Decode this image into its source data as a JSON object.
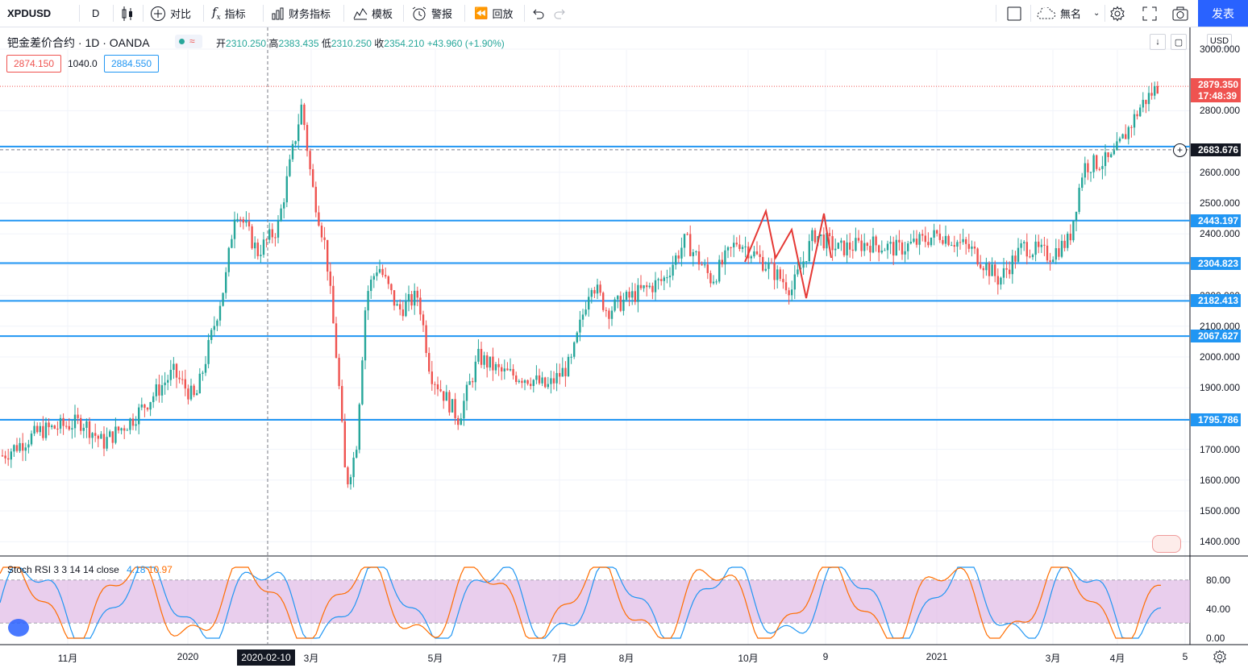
{
  "toolbar": {
    "symbol": "XPDUSD",
    "interval": "D",
    "compare": "对比",
    "indicators": "指标",
    "financials": "财务指标",
    "templates": "模板",
    "alert": "警报",
    "replay": "回放",
    "layout_name": "無名",
    "publish": "发表"
  },
  "legend": {
    "title": "钯金差价合约 · 1D · OANDA",
    "open_label": "开",
    "open": "2310.250",
    "high_label": "高",
    "high": "2383.435",
    "low_label": "低",
    "low": "2310.250",
    "close_label": "收",
    "close": "2354.210",
    "change": "+43.960",
    "change_pct": "(+1.90%)",
    "sell": "2874.150",
    "spread": "1040.0",
    "buy": "2884.550"
  },
  "price_axis": {
    "currency": "USD",
    "ticks": [
      "3000.000",
      "2800.000",
      "2600.000",
      "2500.000",
      "2400.000",
      "2300.000",
      "2200.000",
      "2100.000",
      "2000.000",
      "1900.000",
      "1800.000",
      "1700.000",
      "1600.000",
      "1500.000",
      "1400.000"
    ],
    "last_price": "2879.350",
    "countdown": "17:48:39",
    "crosshair_price": "2683.676",
    "level_labels": [
      "2443.197",
      "2304.823",
      "2182.413",
      "2067.627",
      "1795.786"
    ]
  },
  "time_axis": {
    "labels": [
      "11月",
      "2020",
      "3月",
      "5月",
      "7月",
      "8月",
      "10月",
      "9",
      "2021",
      "3月",
      "4月",
      "5"
    ],
    "crosshair_date": "2020-02-10"
  },
  "indicator": {
    "name": "Stoch RSI 3 3 14 14 close",
    "k": "4.18",
    "d": "10.97",
    "ticks": [
      "80.00",
      "40.00",
      "0.00"
    ]
  },
  "colors": {
    "up": "#26a69a",
    "down": "#ef5350",
    "hline": "#2196f3",
    "band": "#e1bee7",
    "k_line": "#2196f3",
    "d_line": "#ff6d00",
    "publish": "#2962ff"
  },
  "chart_data": {
    "type": "candlestick",
    "title": "钯金差价合约 · 1D · OANDA",
    "ylim": [
      1400,
      3000
    ],
    "horizontal_levels": [
      2683.676,
      2443.197,
      2304.823,
      2182.413,
      2067.627,
      1795.786
    ],
    "x_labels": [
      "11月",
      "2020",
      "3月",
      "5月",
      "7月",
      "8月",
      "10月",
      "9",
      "2021",
      "3月",
      "4月",
      "5"
    ],
    "price_path": [
      [
        "2019-10-01",
        1680
      ],
      [
        "2019-10-20",
        1760
      ],
      [
        "2019-11-10",
        1790
      ],
      [
        "2019-11-20",
        1720
      ],
      [
        "2019-12-05",
        1800
      ],
      [
        "2019-12-25",
        1950
      ],
      [
        "2020-01-05",
        1860
      ],
      [
        "2020-01-20",
        2250
      ],
      [
        "2020-01-25",
        2490
      ],
      [
        "2020-02-05",
        2340
      ],
      [
        "2020-02-15",
        2420
      ],
      [
        "2020-02-27",
        2820
      ],
      [
        "2020-03-03",
        2560
      ],
      [
        "2020-03-10",
        2350
      ],
      [
        "2020-03-16",
        1950
      ],
      [
        "2020-03-20",
        1580
      ],
      [
        "2020-03-25",
        1700
      ],
      [
        "2020-03-30",
        2200
      ],
      [
        "2020-04-05",
        2300
      ],
      [
        "2020-04-15",
        2150
      ],
      [
        "2020-04-25",
        2200
      ],
      [
        "2020-05-01",
        1950
      ],
      [
        "2020-05-15",
        1800
      ],
      [
        "2020-05-25",
        2000
      ],
      [
        "2020-06-05",
        1950
      ],
      [
        "2020-06-20",
        1930
      ],
      [
        "2020-06-28",
        1900
      ],
      [
        "2020-07-10",
        1980
      ],
      [
        "2020-07-20",
        2250
      ],
      [
        "2020-07-28",
        2150
      ],
      [
        "2020-08-10",
        2200
      ],
      [
        "2020-08-25",
        2250
      ],
      [
        "2020-09-05",
        2380
      ],
      [
        "2020-09-18",
        2250
      ],
      [
        "2020-10-01",
        2380
      ],
      [
        "2020-10-15",
        2300
      ],
      [
        "2020-10-28",
        2220
      ],
      [
        "2020-11-08",
        2400
      ],
      [
        "2020-11-20",
        2350
      ],
      [
        "2020-12-05",
        2370
      ],
      [
        "2020-12-20",
        2350
      ],
      [
        "2021-01-10",
        2400
      ],
      [
        "2021-01-25",
        2350
      ],
      [
        "2021-02-08",
        2250
      ],
      [
        "2021-02-20",
        2360
      ],
      [
        "2021-03-05",
        2330
      ],
      [
        "2021-03-15",
        2380
      ],
      [
        "2021-03-22",
        2620
      ],
      [
        "2021-04-05",
        2640
      ],
      [
        "2021-04-20",
        2820
      ],
      [
        "2021-04-28",
        2879.35
      ]
    ]
  }
}
